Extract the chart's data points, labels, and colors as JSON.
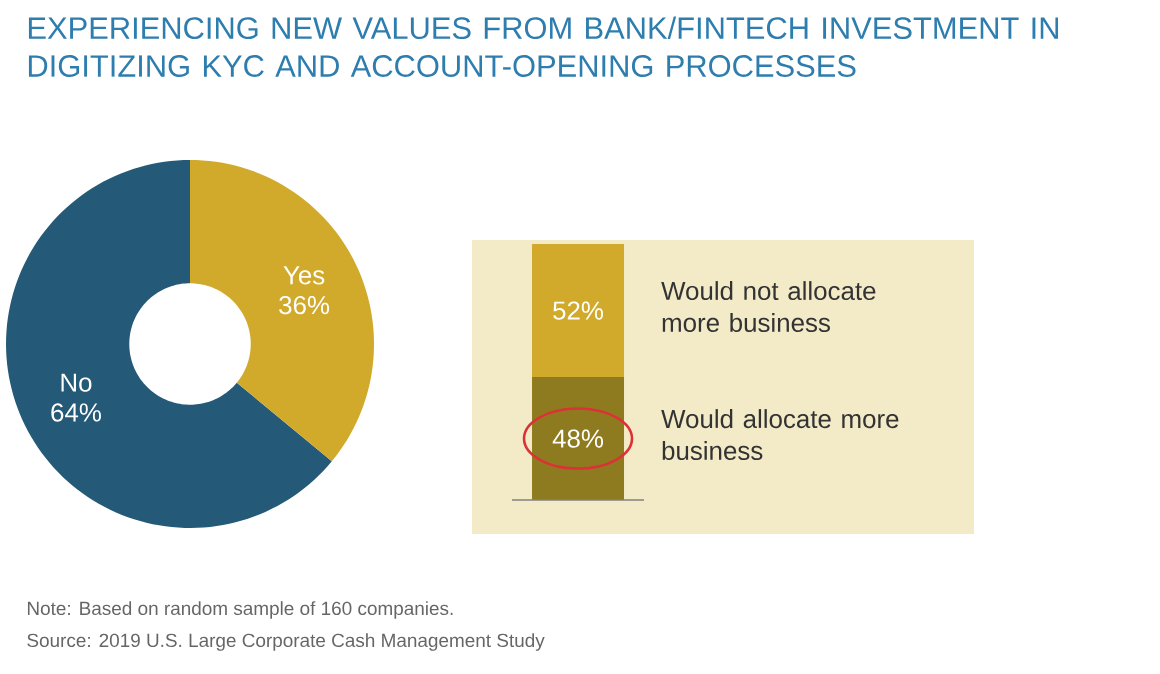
{
  "chart_data": [
    {
      "type": "donut",
      "title": "EXPERIENCING NEW VALUES FROM BANK/FINTECH INVESTMENT IN DIGITIZING KYC AND ACCOUNT-OPENING PROCESSES",
      "categories": [
        "No",
        "Yes"
      ],
      "values": [
        64,
        36
      ],
      "colors": [
        "#245a78",
        "#d1aa2c"
      ],
      "data_labels": true,
      "value_labels": [
        "64%",
        "36%"
      ],
      "annotations": [
        "Note: Based on random sample of 160 companies.",
        "Source: 2019 U.S. Large Corporate Cash Management Study"
      ]
    },
    {
      "type": "bar",
      "stacked": true,
      "categories": [
        null
      ],
      "series": [
        {
          "name": "Would allocate more business",
          "color": "#8f7b1f",
          "values": [
            48
          ],
          "value_labels": [
            "48%"
          ]
        },
        {
          "name": "Would not allocate more business",
          "color": "#d1aa2c",
          "values": [
            52
          ],
          "value_labels": [
            "52%"
          ]
        }
      ]
    }
  ]
}
